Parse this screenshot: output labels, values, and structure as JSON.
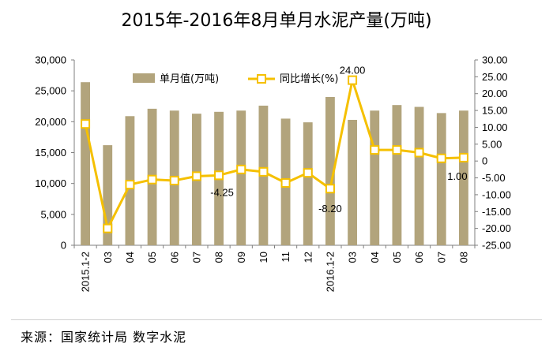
{
  "page": {
    "title": "2015年-2016年8月单月水泥产量(万吨)",
    "source": "来源：国家统计局 数字水泥"
  },
  "colors": {
    "bar": "#b2a47c",
    "line": "#f5c000",
    "marker_fill": "#ffffff",
    "grid": "#d9d9d9"
  },
  "chart_data": {
    "type": "bar+line",
    "categories": [
      "2015.1-2",
      "03",
      "04",
      "05",
      "06",
      "07",
      "08",
      "09",
      "10",
      "11",
      "12",
      "2016.1-2",
      "03",
      "04",
      "05",
      "06",
      "07",
      "08"
    ],
    "series": [
      {
        "name": "单月值(万吨)",
        "type": "bar",
        "axis": "left",
        "values": [
          26400,
          16200,
          20900,
          22100,
          21800,
          21300,
          21600,
          21800,
          22600,
          20500,
          19900,
          24000,
          20300,
          21800,
          22700,
          22400,
          21400,
          21800
        ]
      },
      {
        "name": "同比增长(%)",
        "type": "line",
        "axis": "right",
        "values": [
          11.0,
          -20.0,
          -7.0,
          -5.5,
          -5.8,
          -4.5,
          -4.25,
          -2.5,
          -3.2,
          -6.5,
          -3.5,
          -8.2,
          24.0,
          3.3,
          3.3,
          2.5,
          0.8,
          1.0
        ]
      }
    ],
    "y_left": {
      "min": 0,
      "max": 30000,
      "ticks": [
        "0",
        "5,000",
        "10,000",
        "15,000",
        "20,000",
        "25,000",
        "30,000"
      ]
    },
    "y_right": {
      "min": -25,
      "max": 30,
      "ticks": [
        "-25.00",
        "-20.00",
        "-15.00",
        "-10.00",
        "-5.00",
        "0",
        "5.00",
        "10.00",
        "15.00",
        "20.00",
        "25.00",
        "30.00"
      ]
    },
    "annotations": [
      {
        "index": 6,
        "text": "-4.25"
      },
      {
        "index": 11,
        "text": "-8.20"
      },
      {
        "index": 12,
        "text": "24.00"
      },
      {
        "index": 17,
        "text": "1.00"
      }
    ],
    "legend_position": "top-center",
    "grid": false
  }
}
